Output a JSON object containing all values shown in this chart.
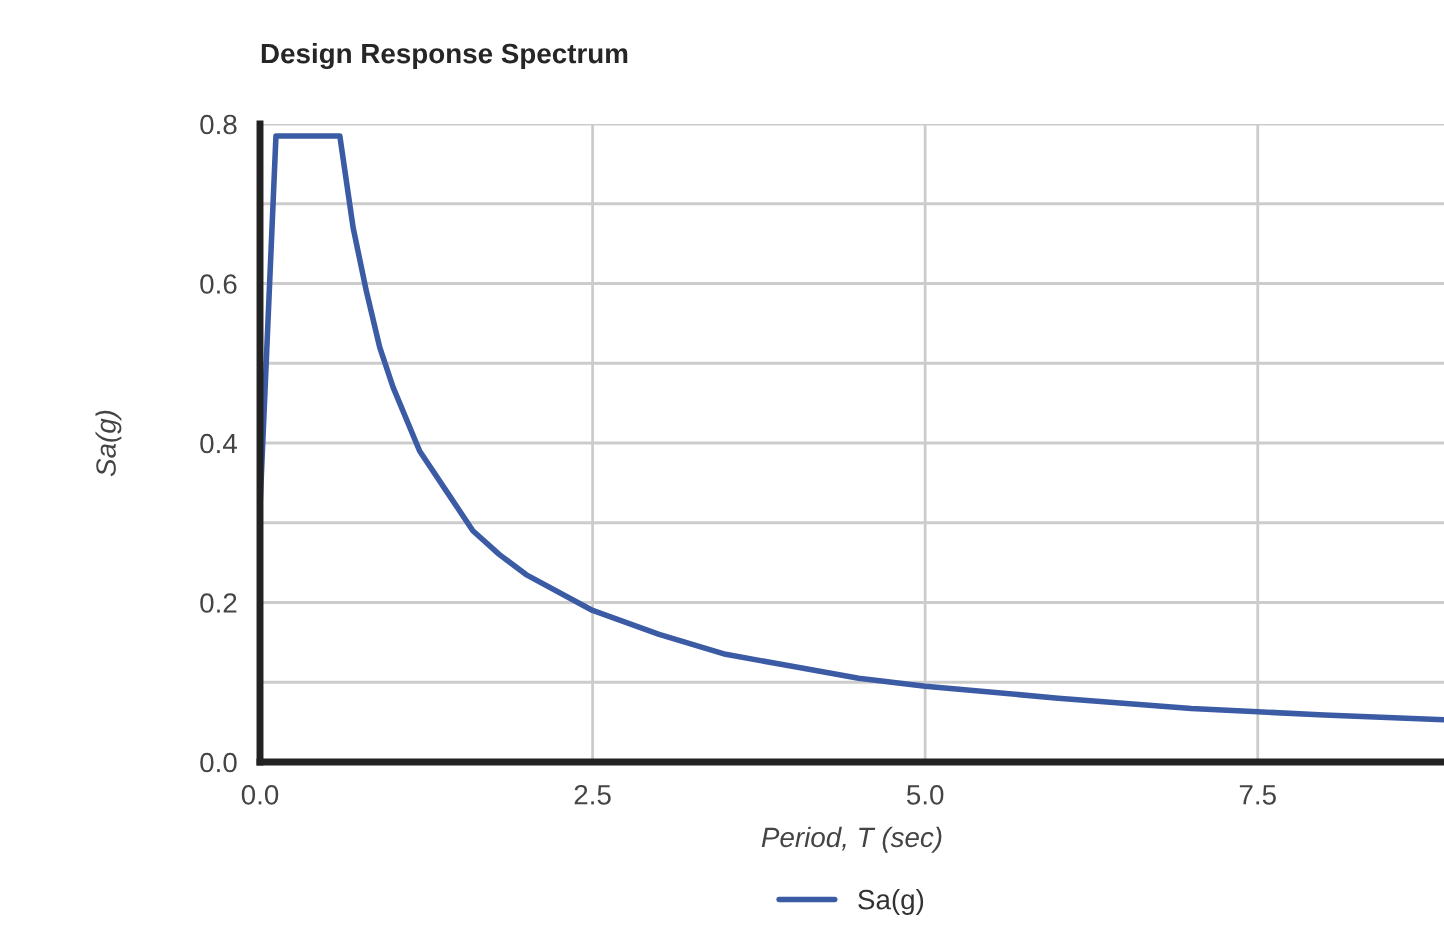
{
  "chart_data": {
    "type": "line",
    "title": "Design Response Spectrum",
    "xlabel": "Period, T (sec)",
    "ylabel": "Sa(g)",
    "x": [
      0,
      0.12,
      0.6,
      0.7,
      0.8,
      0.9,
      1.0,
      1.2,
      1.4,
      1.6,
      1.8,
      2.0,
      2.5,
      3.0,
      3.5,
      4.0,
      4.5,
      5.0,
      6.0,
      7.0,
      7.5,
      8.0,
      8.9
    ],
    "series": [
      {
        "name": "Sa(g)",
        "color": "#3b5ba5",
        "values": [
          0.32,
          0.785,
          0.785,
          0.67,
          0.59,
          0.52,
          0.47,
          0.39,
          0.34,
          0.29,
          0.26,
          0.235,
          0.19,
          0.16,
          0.135,
          0.12,
          0.105,
          0.095,
          0.08,
          0.067,
          0.063,
          0.059,
          0.053
        ]
      }
    ],
    "xlim": [
      0,
      8.9
    ],
    "ylim": [
      0,
      0.8
    ],
    "xticks": [
      {
        "value": 0,
        "label": "0.0"
      },
      2.5,
      {
        "value": 5,
        "label": "5.0"
      },
      7.5
    ],
    "yticks": [
      {
        "value": 0,
        "label": "0.0"
      },
      {
        "value": 0.1,
        "label": null
      },
      0.2,
      {
        "value": 0.3,
        "label": null
      },
      0.4,
      {
        "value": 0.5,
        "label": null
      },
      0.6,
      {
        "value": 0.7,
        "label": null
      },
      0.8
    ],
    "grid": true,
    "legend": "bottom",
    "marker": "none",
    "line_style": "solid"
  }
}
